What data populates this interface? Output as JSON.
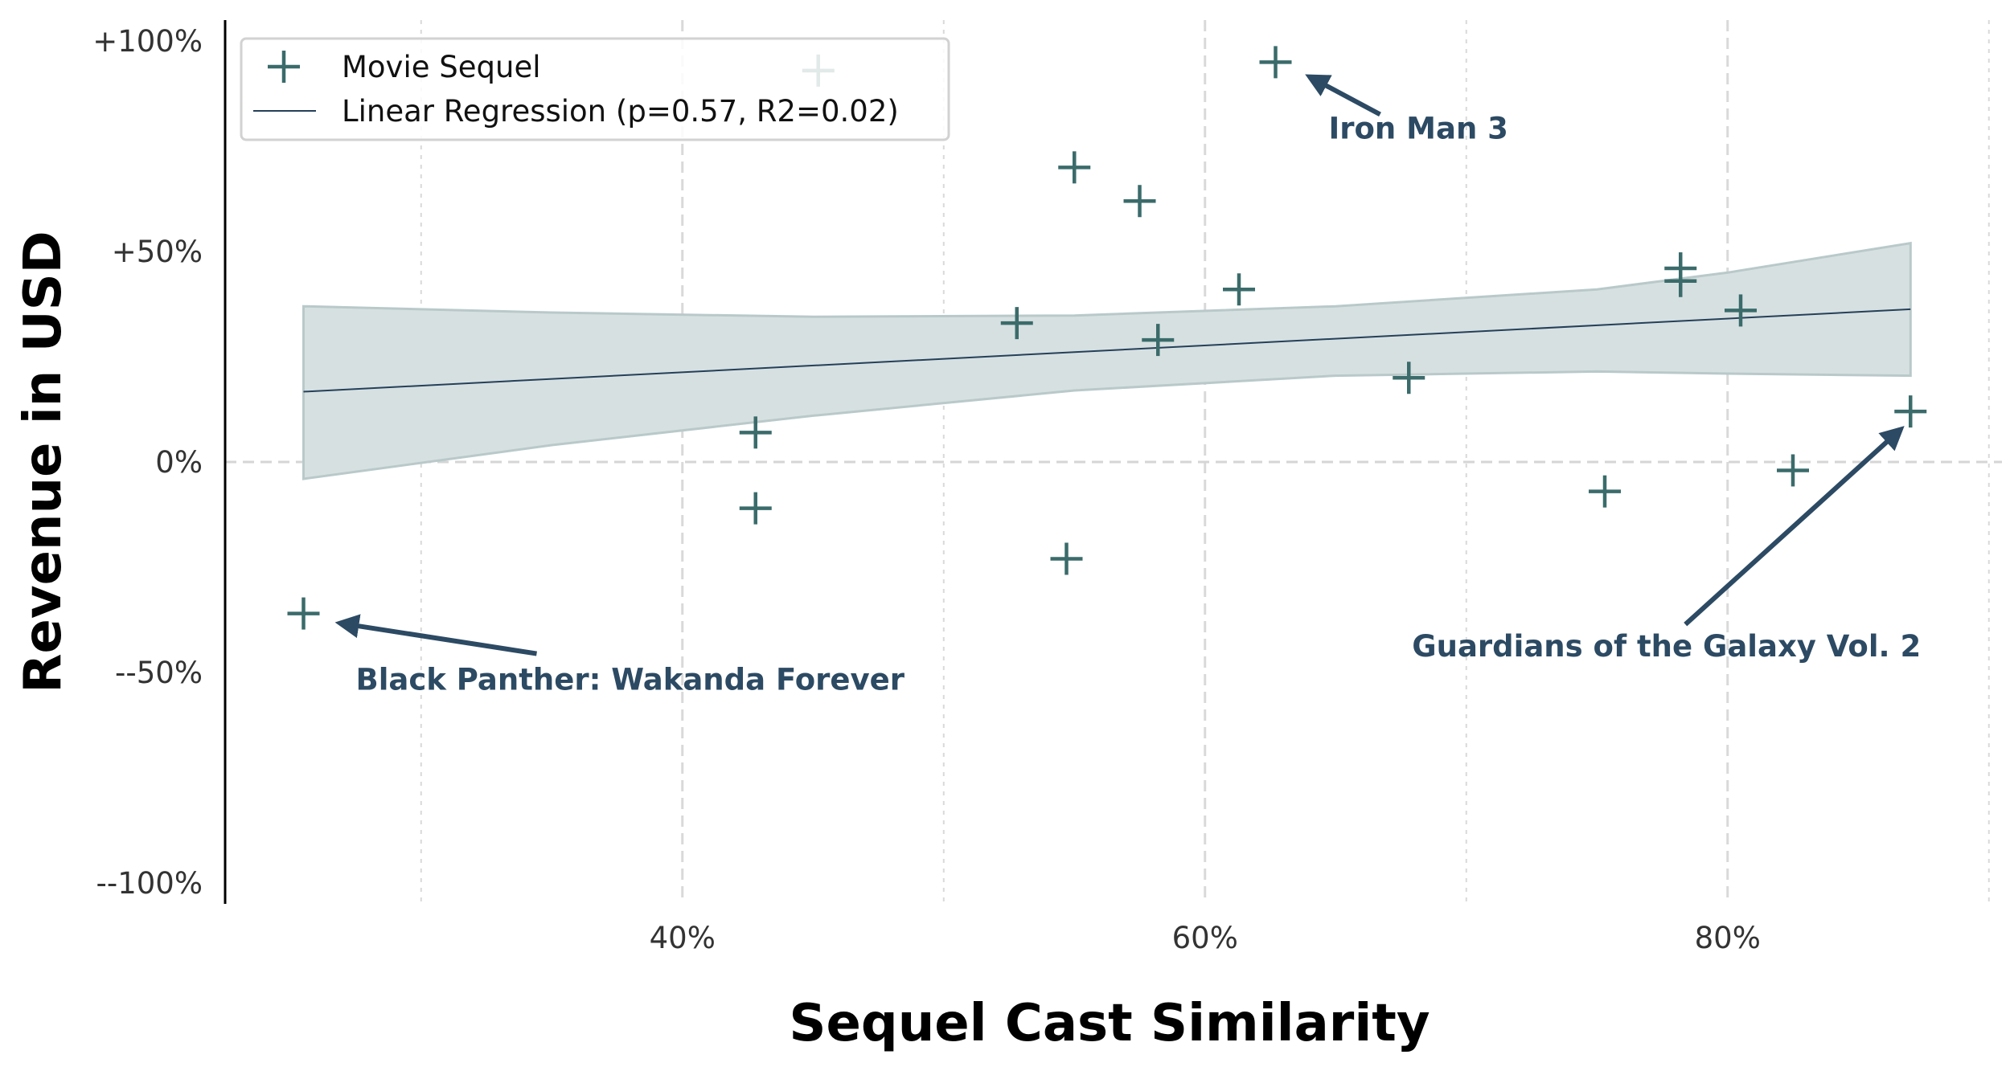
{
  "chart_data": {
    "type": "scatter",
    "xlabel": "Sequel Cast Similarity",
    "ylabel": "Revenue in USD",
    "xlim": [
      0.225,
      0.905
    ],
    "ylim": [
      -1.05,
      1.05
    ],
    "x_ticks": [
      {
        "value": 0.4,
        "label": "40%"
      },
      {
        "value": 0.6,
        "label": "60%"
      },
      {
        "value": 0.8,
        "label": "80%"
      }
    ],
    "x_minor_ticks": [
      0.3,
      0.5,
      0.7,
      0.9
    ],
    "y_ticks": [
      {
        "value": 1.0,
        "label": "+100%"
      },
      {
        "value": 0.5,
        "label": "+50%"
      },
      {
        "value": 0.0,
        "label": "0%"
      },
      {
        "value": -0.5,
        "label": "--50%"
      },
      {
        "value": -1.0,
        "label": "--100%"
      }
    ],
    "grid": true,
    "legend_position": "top-left",
    "colors": {
      "points": "#3b6b6b",
      "regression_line": "#24405a",
      "confidence_band": "#d7e0e1",
      "confidence_band_edge": "#b9c9c9",
      "annotation": "#2c4a63",
      "grid": "#d9d9d9",
      "zero_line": "#d5d5d5"
    },
    "series": [
      {
        "name": "Movie Sequel",
        "marker": "plus",
        "points": [
          {
            "x": 0.255,
            "y": -0.36
          },
          {
            "x": 0.428,
            "y": 0.07
          },
          {
            "x": 0.428,
            "y": -0.11
          },
          {
            "x": 0.452,
            "y": 0.93
          },
          {
            "x": 0.528,
            "y": 0.33
          },
          {
            "x": 0.547,
            "y": -0.23
          },
          {
            "x": 0.55,
            "y": 0.7
          },
          {
            "x": 0.575,
            "y": 0.62
          },
          {
            "x": 0.582,
            "y": 0.29
          },
          {
            "x": 0.613,
            "y": 0.41
          },
          {
            "x": 0.627,
            "y": 0.95
          },
          {
            "x": 0.678,
            "y": 0.2
          },
          {
            "x": 0.753,
            "y": -0.07
          },
          {
            "x": 0.782,
            "y": 0.46
          },
          {
            "x": 0.782,
            "y": 0.43
          },
          {
            "x": 0.805,
            "y": 0.36
          },
          {
            "x": 0.825,
            "y": -0.02
          },
          {
            "x": 0.87,
            "y": 0.12
          }
        ]
      }
    ],
    "regression": {
      "name": "Linear Regression (p=0.57, R2=0.02)",
      "x": [
        0.255,
        0.87
      ],
      "y": [
        0.167,
        0.363
      ],
      "band": {
        "x": [
          0.255,
          0.35,
          0.45,
          0.55,
          0.65,
          0.75,
          0.8,
          0.87
        ],
        "upper": [
          0.37,
          0.355,
          0.345,
          0.348,
          0.37,
          0.41,
          0.45,
          0.52
        ],
        "lower": [
          -0.04,
          0.04,
          0.11,
          0.17,
          0.205,
          0.215,
          0.21,
          0.205
        ]
      }
    },
    "annotations": [
      {
        "text": "Iron Man 3",
        "point": {
          "x": 0.627,
          "y": 0.95
        },
        "anchor": "below-right"
      },
      {
        "text": "Black Panther: Wakanda Forever",
        "point": {
          "x": 0.255,
          "y": -0.36
        },
        "anchor": "below-right"
      },
      {
        "text": "Guardians of the Galaxy Vol. 2",
        "point": {
          "x": 0.87,
          "y": 0.12
        },
        "anchor": "below-left"
      }
    ]
  }
}
